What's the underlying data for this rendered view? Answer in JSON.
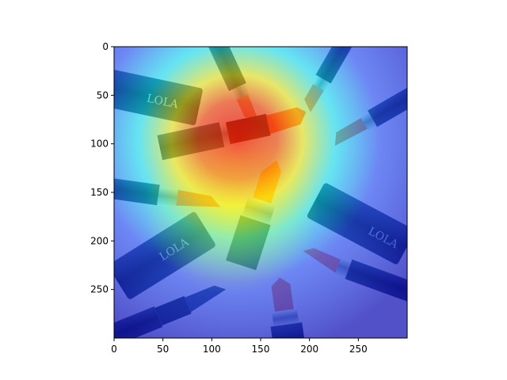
{
  "figure": {
    "description_type": "image-with-saliency-heatmap",
    "colormap": "jet",
    "colormap_stops": [
      "#00007f",
      "#0000ff",
      "#00ffff",
      "#ffff00",
      "#ff0000",
      "#7f0000"
    ],
    "axis_color": "#000000"
  },
  "axes": {
    "x": {
      "range": [
        0,
        300
      ],
      "ticks": [
        0,
        50,
        100,
        150,
        200,
        250
      ],
      "tick_labels": [
        "0",
        "50",
        "100",
        "150",
        "200",
        "250"
      ]
    },
    "y": {
      "range": [
        300,
        0
      ],
      "ticks": [
        0,
        50,
        100,
        150,
        200,
        250
      ],
      "tick_labels": [
        "0",
        "50",
        "100",
        "150",
        "200",
        "250"
      ]
    }
  },
  "image_content": {
    "subject": "lipsticks arranged radially",
    "brand_text": "LOLA",
    "lipstick_colors": [
      "#c9403a",
      "#e0443a",
      "#f28a2a",
      "#c96a66"
    ],
    "tube_color": "#1b2a55"
  }
}
